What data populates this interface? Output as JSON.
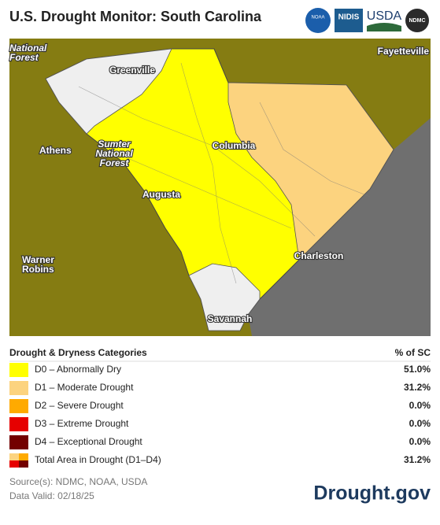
{
  "header": {
    "title": "U.S. Drought Monitor: South Carolina",
    "logos": [
      "NOAA",
      "NIDIS",
      "USDA",
      "NDMC"
    ]
  },
  "map": {
    "labels": [
      {
        "lines": [
          "National",
          "Forest"
        ]
      },
      {
        "lines": [
          "Fayetteville"
        ]
      },
      {
        "lines": [
          "Greenville"
        ]
      },
      {
        "lines": [
          "Athens"
        ]
      },
      {
        "lines": [
          "Sumter",
          "National",
          "Forest"
        ]
      },
      {
        "lines": [
          "Columbia"
        ]
      },
      {
        "lines": [
          "Augusta"
        ]
      },
      {
        "lines": [
          "Charleston"
        ]
      },
      {
        "lines": [
          "Warner",
          "Robins"
        ]
      },
      {
        "lines": [
          "Savannah"
        ]
      }
    ]
  },
  "legend": {
    "title": "Drought & Dryness Categories",
    "column": "% of SC",
    "rows": [
      {
        "label": "D0 – Abnormally Dry",
        "value": "51.0%",
        "color": "#ffff00"
      },
      {
        "label": "D1 – Moderate Drought",
        "value": "31.2%",
        "color": "#fcd37f"
      },
      {
        "label": "D2 – Severe Drought",
        "value": "0.0%",
        "color": "#ffaa00"
      },
      {
        "label": "D3 – Extreme Drought",
        "value": "0.0%",
        "color": "#e60000"
      },
      {
        "label": "D4 – Exceptional Drought",
        "value": "0.0%",
        "color": "#730000"
      },
      {
        "label": "Total Area in Drought (D1–D4)",
        "value": "31.2%"
      }
    ]
  },
  "footer": {
    "sources": "Source(s): NDMC, NOAA, USDA",
    "valid": "Data Valid: 02/18/25",
    "brand": "Drought.gov"
  }
}
